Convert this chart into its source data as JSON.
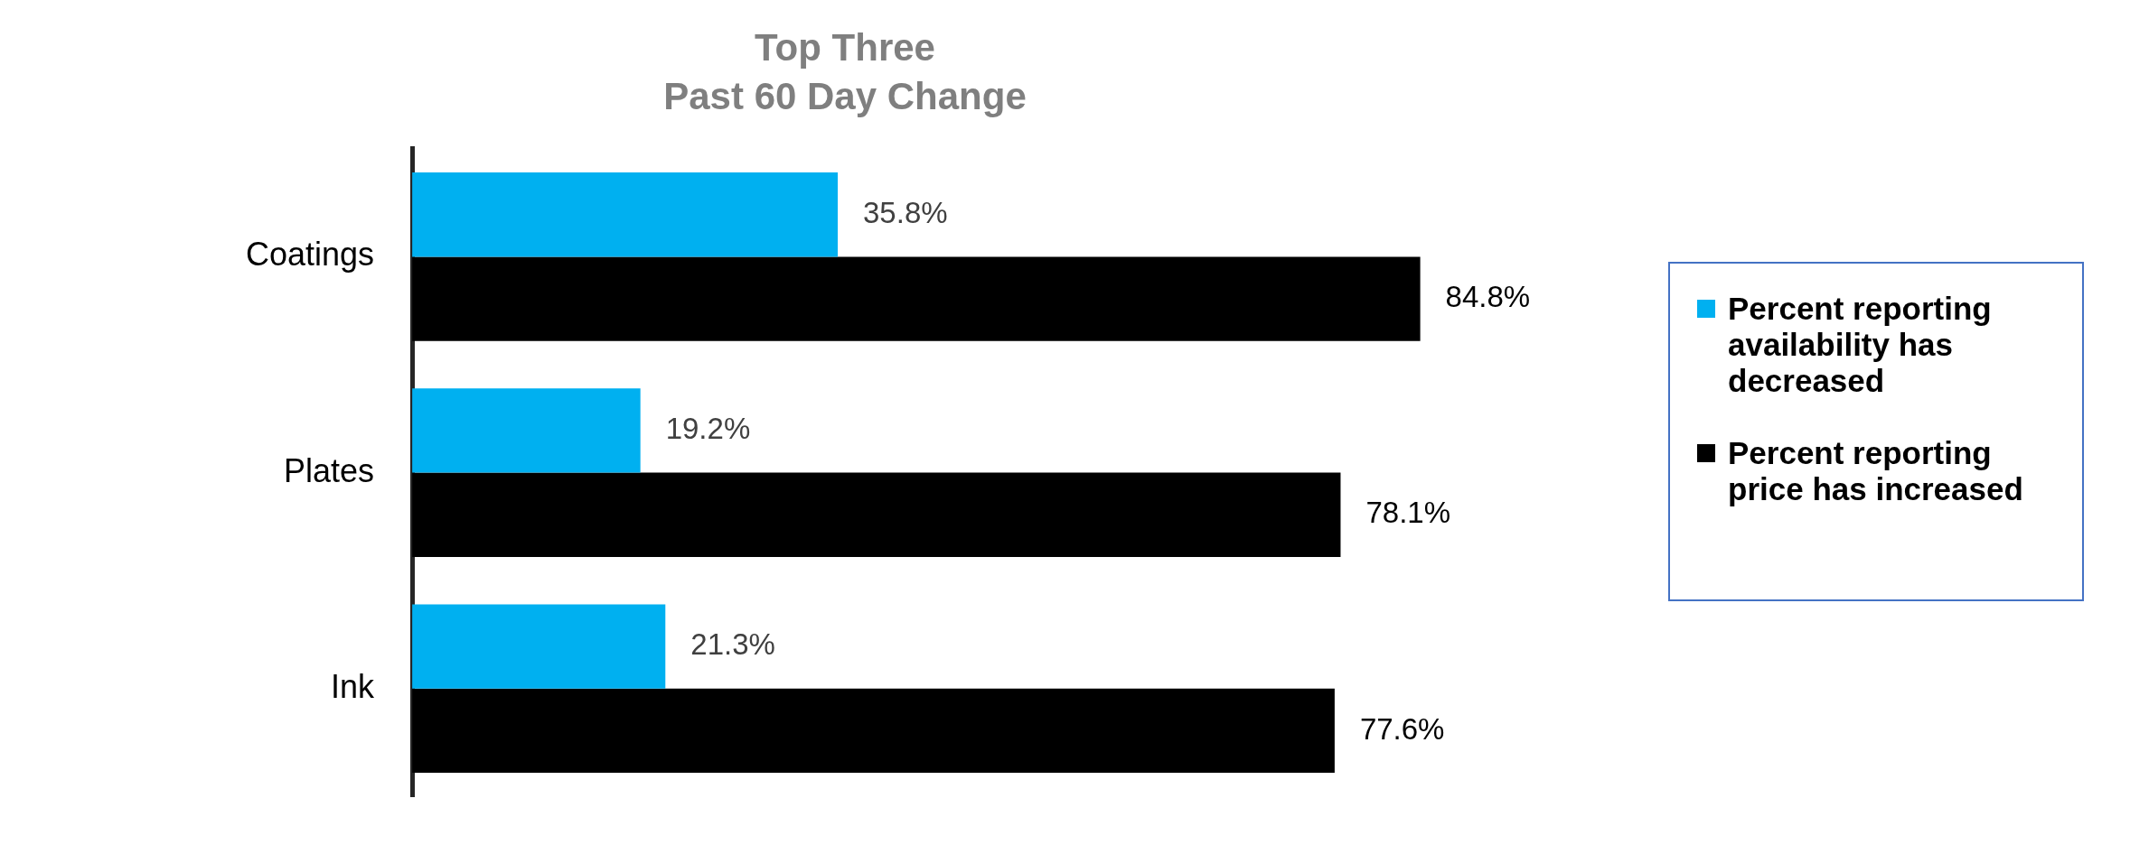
{
  "chart_data": {
    "type": "bar",
    "orientation": "horizontal",
    "title": "Top Three",
    "subtitle": "Past 60 Day Change",
    "categories": [
      "Coatings",
      "Plates",
      "Ink"
    ],
    "series": [
      {
        "name": "Percent reporting availability has decreased",
        "color": "#00b0f0",
        "values": [
          35.8,
          19.2,
          21.3
        ],
        "value_labels": [
          "35.8%",
          "19.2%",
          "21.3%"
        ]
      },
      {
        "name": "Percent reporting price has increased",
        "color": "#000000",
        "values": [
          84.8,
          78.1,
          77.6
        ],
        "value_labels": [
          "84.8%",
          "78.1%",
          "77.6%"
        ]
      }
    ],
    "legend": "right",
    "grid": false,
    "tick_labels": "y"
  }
}
